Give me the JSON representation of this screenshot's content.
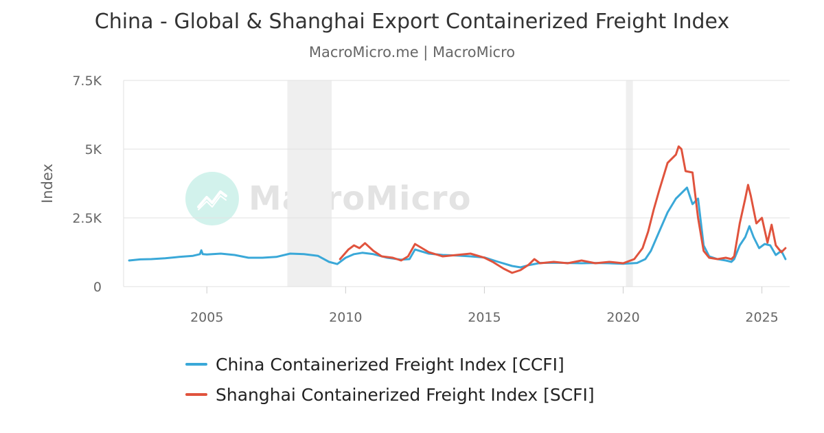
{
  "header": {
    "title": "China - Global & Shanghai Export Containerized Freight Index",
    "subtitle": "MacroMicro.me | MacroMicro"
  },
  "watermark": {
    "text": "MacroMicro",
    "icon": "chart-logo-icon"
  },
  "colors": {
    "ccfi": "#3aa8d8",
    "scfi": "#e0533d",
    "recession": "#efefef",
    "grid": "#e2e2e2"
  },
  "chart_data": {
    "type": "line",
    "title": "China - Global & Shanghai Export Containerized Freight Index",
    "subtitle": "MacroMicro.me | MacroMicro",
    "ylabel": "Index",
    "xlabel": "",
    "xlim": [
      2002.0,
      2026.0
    ],
    "ylim": [
      0,
      7500
    ],
    "x_ticks": [
      2005,
      2010,
      2015,
      2020,
      2025
    ],
    "x_tick_labels": [
      "2005",
      "2010",
      "2015",
      "2020",
      "2025"
    ],
    "y_ticks": [
      0,
      2500,
      5000,
      7500
    ],
    "y_tick_labels": [
      "0",
      "2.5K",
      "5K",
      "7.5K"
    ],
    "grid": true,
    "legend_position": "bottom",
    "shaded_periods": [
      [
        2007.9,
        2009.5
      ],
      [
        2020.1,
        2020.35
      ]
    ],
    "series": [
      {
        "name": "China Containerized Freight Index [CCFI]",
        "color": "#3aa8d8",
        "x": [
          2002.2,
          2002.6,
          2003.0,
          2003.5,
          2004.0,
          2004.5,
          2004.75,
          2004.8,
          2004.85,
          2005.0,
          2005.5,
          2006.0,
          2006.5,
          2007.0,
          2007.5,
          2008.0,
          2008.5,
          2009.0,
          2009.4,
          2009.7,
          2010.0,
          2010.3,
          2010.6,
          2011.0,
          2011.5,
          2012.0,
          2012.3,
          2012.5,
          2013.0,
          2013.5,
          2014.0,
          2014.5,
          2015.0,
          2015.5,
          2016.0,
          2016.3,
          2016.6,
          2017.0,
          2017.5,
          2018.0,
          2018.5,
          2019.0,
          2019.5,
          2020.0,
          2020.5,
          2020.8,
          2021.0,
          2021.3,
          2021.6,
          2021.9,
          2022.1,
          2022.3,
          2022.5,
          2022.7,
          2022.9,
          2023.1,
          2023.4,
          2023.7,
          2023.9,
          2024.0,
          2024.2,
          2024.4,
          2024.55,
          2024.7,
          2024.9,
          2025.1,
          2025.3,
          2025.5,
          2025.7,
          2025.85
        ],
        "values": [
          950,
          990,
          1000,
          1030,
          1080,
          1120,
          1180,
          1320,
          1180,
          1170,
          1200,
          1150,
          1050,
          1050,
          1080,
          1200,
          1180,
          1120,
          900,
          820,
          1050,
          1180,
          1230,
          1180,
          1050,
          980,
          1000,
          1350,
          1200,
          1150,
          1130,
          1100,
          1060,
          900,
          750,
          700,
          780,
          860,
          870,
          860,
          850,
          860,
          850,
          830,
          860,
          1000,
          1300,
          2000,
          2700,
          3200,
          3400,
          3600,
          3000,
          3200,
          1500,
          1100,
          1000,
          950,
          900,
          1000,
          1500,
          1800,
          2200,
          1800,
          1400,
          1550,
          1500,
          1150,
          1300,
          1000
        ]
      },
      {
        "name": "Shanghai Containerized Freight Index [SCFI]",
        "color": "#e0533d",
        "x": [
          2009.8,
          2010.1,
          2010.3,
          2010.5,
          2010.7,
          2011.0,
          2011.3,
          2011.7,
          2012.0,
          2012.25,
          2012.5,
          2013.0,
          2013.5,
          2014.0,
          2014.5,
          2015.0,
          2015.3,
          2015.7,
          2016.0,
          2016.3,
          2016.6,
          2016.8,
          2017.0,
          2017.5,
          2018.0,
          2018.5,
          2019.0,
          2019.5,
          2020.0,
          2020.4,
          2020.7,
          2020.9,
          2021.1,
          2021.3,
          2021.6,
          2021.9,
          2022.0,
          2022.1,
          2022.25,
          2022.5,
          2022.7,
          2022.9,
          2023.1,
          2023.4,
          2023.7,
          2023.9,
          2024.0,
          2024.2,
          2024.4,
          2024.5,
          2024.6,
          2024.8,
          2025.0,
          2025.2,
          2025.35,
          2025.5,
          2025.7,
          2025.85
        ],
        "values": [
          1000,
          1350,
          1500,
          1400,
          1580,
          1300,
          1100,
          1050,
          950,
          1100,
          1550,
          1250,
          1100,
          1150,
          1200,
          1050,
          900,
          650,
          500,
          600,
          800,
          1000,
          850,
          900,
          850,
          950,
          850,
          900,
          850,
          1000,
          1400,
          2000,
          2800,
          3500,
          4500,
          4800,
          5100,
          5000,
          4200,
          4150,
          2500,
          1300,
          1050,
          1000,
          1050,
          1000,
          1100,
          2300,
          3200,
          3700,
          3300,
          2300,
          2500,
          1600,
          2250,
          1500,
          1250,
          1400
        ]
      }
    ]
  }
}
